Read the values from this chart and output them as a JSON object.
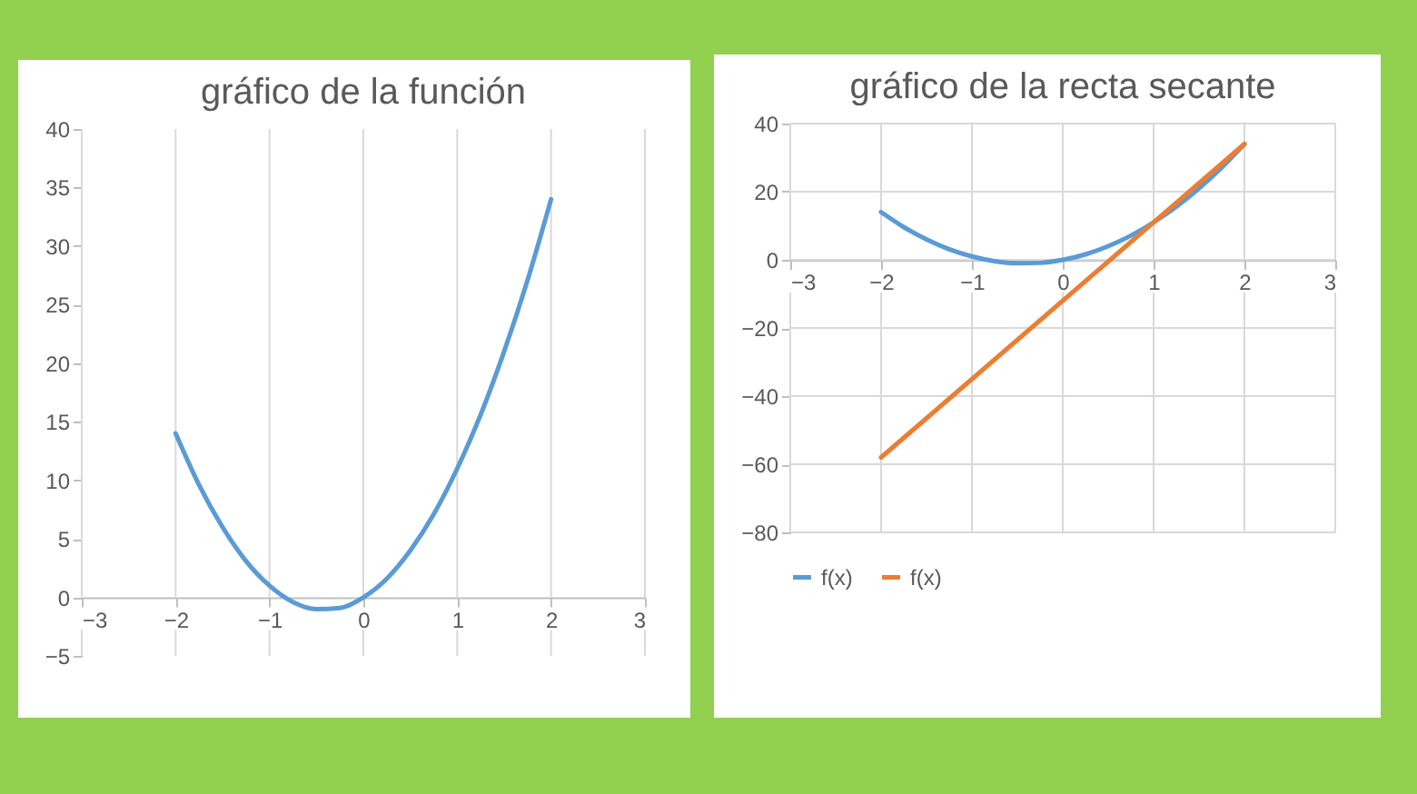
{
  "chart_data": [
    {
      "type": "line",
      "title": "gráfico de la función",
      "xlim": [
        -3,
        3
      ],
      "xticks": [
        -3,
        -2,
        -1,
        0,
        1,
        2,
        3
      ],
      "ylim": [
        -5,
        40
      ],
      "yticks": [
        -5,
        0,
        5,
        10,
        15,
        20,
        25,
        30,
        35,
        40
      ],
      "grid": "x",
      "legend": false,
      "series": [
        {
          "color": "#5b9bd5",
          "x": [
            -2,
            -1.75,
            -1.5,
            -1.25,
            -1,
            -0.75,
            -0.5,
            -0.25,
            0,
            0.25,
            0.5,
            0.75,
            1,
            1.25,
            1.5,
            1.75,
            2
          ],
          "values": [
            14,
            9.6,
            6,
            3.1,
            1,
            -0.4,
            -1,
            -0.9,
            0,
            1.6,
            4,
            7.1,
            11,
            15.6,
            21,
            27.1,
            34
          ]
        }
      ]
    },
    {
      "type": "line",
      "title": "gráfico de la recta secante",
      "xlim": [
        -3,
        3
      ],
      "xticks": [
        -3,
        -2,
        -1,
        0,
        1,
        2,
        3
      ],
      "ylim": [
        -80,
        40
      ],
      "yticks": [
        -80,
        -60,
        -40,
        -20,
        0,
        20,
        40
      ],
      "grid": true,
      "legend": "bottom",
      "series": [
        {
          "name": "f(x)",
          "color": "#5b9bd5",
          "x": [
            -2,
            -1.75,
            -1.5,
            -1.25,
            -1,
            -0.75,
            -0.5,
            -0.25,
            0,
            0.25,
            0.5,
            0.75,
            1,
            1.25,
            1.5,
            1.75,
            2
          ],
          "values": [
            14,
            9.6,
            6,
            3.1,
            1,
            -0.4,
            -1,
            -0.9,
            0,
            1.6,
            4,
            7.1,
            11,
            15.6,
            21,
            27.1,
            34
          ]
        },
        {
          "name": "f(x)",
          "color": "#ed7d31",
          "x": [
            -2,
            2
          ],
          "values": [
            -58,
            34
          ]
        }
      ]
    }
  ]
}
